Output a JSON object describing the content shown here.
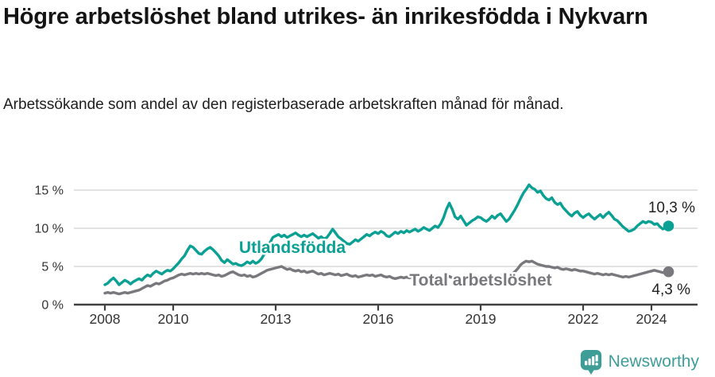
{
  "header": {
    "title": "Högre arbetslöshet bland utrikes- än inrikesfödda i Nykvarn",
    "subtitle": "Arbetssökande som andel av den registerbaserade arbetskraften månad för månad."
  },
  "chart_data": {
    "type": "line",
    "title": "Högre arbetslöshet bland utrikes- än inrikesfödda i Nykvarn",
    "subtitle": "Arbetssökande som andel av den registerbaserade arbetskraften månad för månad.",
    "unit": "%",
    "x_start": "2008-01",
    "x_end": "2024-07",
    "x_interval": "monthly",
    "x_ticks": [
      2008,
      2010,
      2013,
      2016,
      2019,
      2022,
      2024
    ],
    "y_ticks": [
      {
        "value": 0,
        "label": "0 %"
      },
      {
        "value": 5,
        "label": "5 %"
      },
      {
        "value": 10,
        "label": "10 %"
      },
      {
        "value": 15,
        "label": "15 %"
      }
    ],
    "ylim": [
      0,
      16.5
    ],
    "grid": "horizontal",
    "legend_position": "inline-labels",
    "series": [
      {
        "name": "Utlandsfödda",
        "color": "#0aa093",
        "end_label": "10,3 %",
        "end_value": 10.3,
        "values": [
          2.6,
          2.8,
          3.2,
          3.5,
          3.1,
          2.6,
          2.9,
          3.2,
          3.0,
          2.7,
          3.0,
          3.2,
          3.4,
          3.2,
          3.6,
          3.9,
          3.7,
          4.1,
          4.4,
          4.2,
          4.0,
          4.3,
          4.5,
          4.4,
          4.7,
          5.1,
          5.5,
          6.0,
          6.4,
          7.1,
          7.7,
          7.5,
          7.1,
          6.7,
          6.6,
          7.0,
          7.3,
          7.5,
          7.2,
          6.8,
          6.4,
          5.8,
          5.5,
          5.9,
          5.6,
          5.3,
          5.4,
          5.2,
          5.1,
          5.3,
          5.6,
          5.4,
          5.7,
          5.4,
          5.6,
          6.0,
          6.6,
          7.3,
          8.1,
          8.8,
          9.0,
          9.2,
          8.9,
          9.1,
          8.8,
          9.0,
          9.2,
          9.4,
          9.1,
          8.9,
          9.1,
          8.9,
          9.1,
          9.3,
          9.0,
          8.7,
          8.9,
          8.6,
          8.8,
          9.3,
          9.9,
          9.4,
          8.9,
          8.6,
          8.3,
          8.0,
          7.9,
          8.2,
          8.5,
          8.3,
          8.6,
          8.9,
          9.2,
          9.0,
          9.3,
          9.5,
          9.3,
          9.6,
          9.4,
          9.0,
          8.9,
          9.2,
          9.5,
          9.3,
          9.6,
          9.4,
          9.7,
          9.5,
          9.7,
          9.9,
          9.6,
          9.8,
          10.1,
          9.9,
          9.7,
          10.0,
          10.3,
          10.1,
          10.6,
          11.4,
          12.5,
          13.3,
          12.5,
          11.5,
          11.2,
          11.6,
          11.0,
          10.4,
          10.7,
          11.0,
          11.2,
          11.5,
          11.4,
          11.1,
          10.9,
          11.2,
          11.6,
          11.3,
          11.7,
          11.9,
          11.4,
          10.9,
          11.2,
          11.8,
          12.4,
          13.1,
          13.9,
          14.6,
          15.1,
          15.7,
          15.3,
          15.1,
          14.7,
          14.9,
          14.3,
          13.9,
          13.7,
          14.0,
          13.4,
          13.1,
          13.3,
          12.7,
          12.3,
          11.9,
          11.6,
          12.0,
          12.2,
          11.7,
          11.4,
          11.7,
          11.9,
          11.5,
          11.2,
          11.5,
          11.8,
          11.4,
          11.8,
          12.1,
          11.7,
          11.2,
          11.0,
          10.6,
          10.2,
          9.9,
          9.6,
          9.7,
          9.9,
          10.3,
          10.6,
          10.9,
          10.7,
          10.9,
          10.8,
          10.5,
          10.6,
          10.2,
          9.9,
          10.1,
          10.3
        ]
      },
      {
        "name": "Total arbetslöshet",
        "color": "#78787d",
        "end_label": "4,3 %",
        "end_value": 4.3,
        "values": [
          1.5,
          1.6,
          1.5,
          1.6,
          1.5,
          1.4,
          1.5,
          1.6,
          1.5,
          1.6,
          1.7,
          1.8,
          1.9,
          2.1,
          2.3,
          2.5,
          2.4,
          2.6,
          2.8,
          2.7,
          2.9,
          3.1,
          3.2,
          3.4,
          3.5,
          3.7,
          3.9,
          4.0,
          3.9,
          4.0,
          4.1,
          4.0,
          4.1,
          4.0,
          4.1,
          4.0,
          4.1,
          4.0,
          3.9,
          3.8,
          3.9,
          3.7,
          3.8,
          4.0,
          4.2,
          4.3,
          4.1,
          3.9,
          3.8,
          3.9,
          3.7,
          3.8,
          3.6,
          3.7,
          3.9,
          4.1,
          4.3,
          4.5,
          4.6,
          4.7,
          4.8,
          4.9,
          5.0,
          4.8,
          4.6,
          4.7,
          4.5,
          4.4,
          4.5,
          4.3,
          4.4,
          4.2,
          4.3,
          4.4,
          4.2,
          4.0,
          4.1,
          3.9,
          4.0,
          4.1,
          4.0,
          3.9,
          4.0,
          3.8,
          3.9,
          4.0,
          3.8,
          3.7,
          3.8,
          3.6,
          3.7,
          3.8,
          3.9,
          3.8,
          3.9,
          3.7,
          3.8,
          3.9,
          3.7,
          3.6,
          3.7,
          3.5,
          3.4,
          3.5,
          3.6,
          3.5,
          3.6,
          3.5,
          3.6,
          3.7,
          3.5,
          3.4,
          3.5,
          3.3,
          3.4,
          3.5,
          3.6,
          3.5,
          3.6,
          3.5,
          3.6,
          3.7,
          3.5,
          3.4,
          3.5,
          3.4,
          3.3,
          3.4,
          3.5,
          3.4,
          3.5,
          3.6,
          3.5,
          3.6,
          3.4,
          3.5,
          3.6,
          3.5,
          3.6,
          3.7,
          3.6,
          3.7,
          3.8,
          4.0,
          4.3,
          4.7,
          5.2,
          5.5,
          5.7,
          5.6,
          5.7,
          5.5,
          5.3,
          5.2,
          5.1,
          5.0,
          5.0,
          4.9,
          4.8,
          4.9,
          4.7,
          4.6,
          4.7,
          4.6,
          4.5,
          4.6,
          4.5,
          4.4,
          4.4,
          4.3,
          4.2,
          4.1,
          4.0,
          4.1,
          4.0,
          3.9,
          4.0,
          3.9,
          4.0,
          3.9,
          3.8,
          3.7,
          3.6,
          3.7,
          3.6,
          3.7,
          3.8,
          3.9,
          4.0,
          4.1,
          4.2,
          4.3,
          4.4,
          4.5,
          4.4,
          4.3,
          4.2,
          4.2,
          4.3
        ]
      }
    ]
  },
  "colors": {
    "accent_teal": "#0aa093",
    "series_gray": "#78787d",
    "gridline": "#d9d9d9",
    "axis": "#404040",
    "axis_label": "#333333",
    "end_label_text": "#222222",
    "brand_teal": "#3f9d98"
  },
  "footer": {
    "brand": "Newsworthy"
  }
}
